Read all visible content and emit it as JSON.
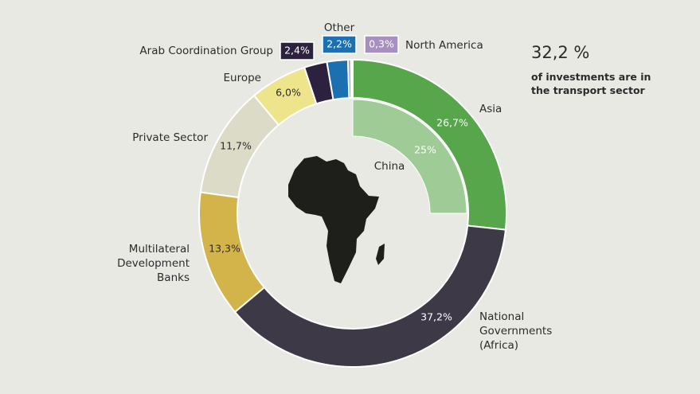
{
  "chart_data": {
    "type": "donut",
    "categories": [
      "Asia",
      "National Governments (Africa)",
      "Multilateral Development Banks",
      "Private Sector",
      "Europe",
      "Arab Coordination Group",
      "Other",
      "North America"
    ],
    "values": [
      26.7,
      37.2,
      13.3,
      11.7,
      6.0,
      2.4,
      2.2,
      0.3
    ],
    "value_labels": [
      "26,7%",
      "37,2%",
      "13,3%",
      "11,7%",
      "6,0%",
      "2,4%",
      "2,2%",
      "0,3%"
    ],
    "colors": [
      "#57a64b",
      "#3d3947",
      "#d3b44b",
      "#dcdbc7",
      "#eee48b",
      "#2c2240",
      "#1b70b1",
      "#a790bf"
    ],
    "inner": {
      "categories": [
        "China"
      ],
      "values": [
        25
      ],
      "value_labels": [
        "25%"
      ],
      "colors": [
        "#9fcb97"
      ]
    },
    "annotation": {
      "headline": "32,2 %",
      "text": "of investments are in the transport sector"
    }
  }
}
